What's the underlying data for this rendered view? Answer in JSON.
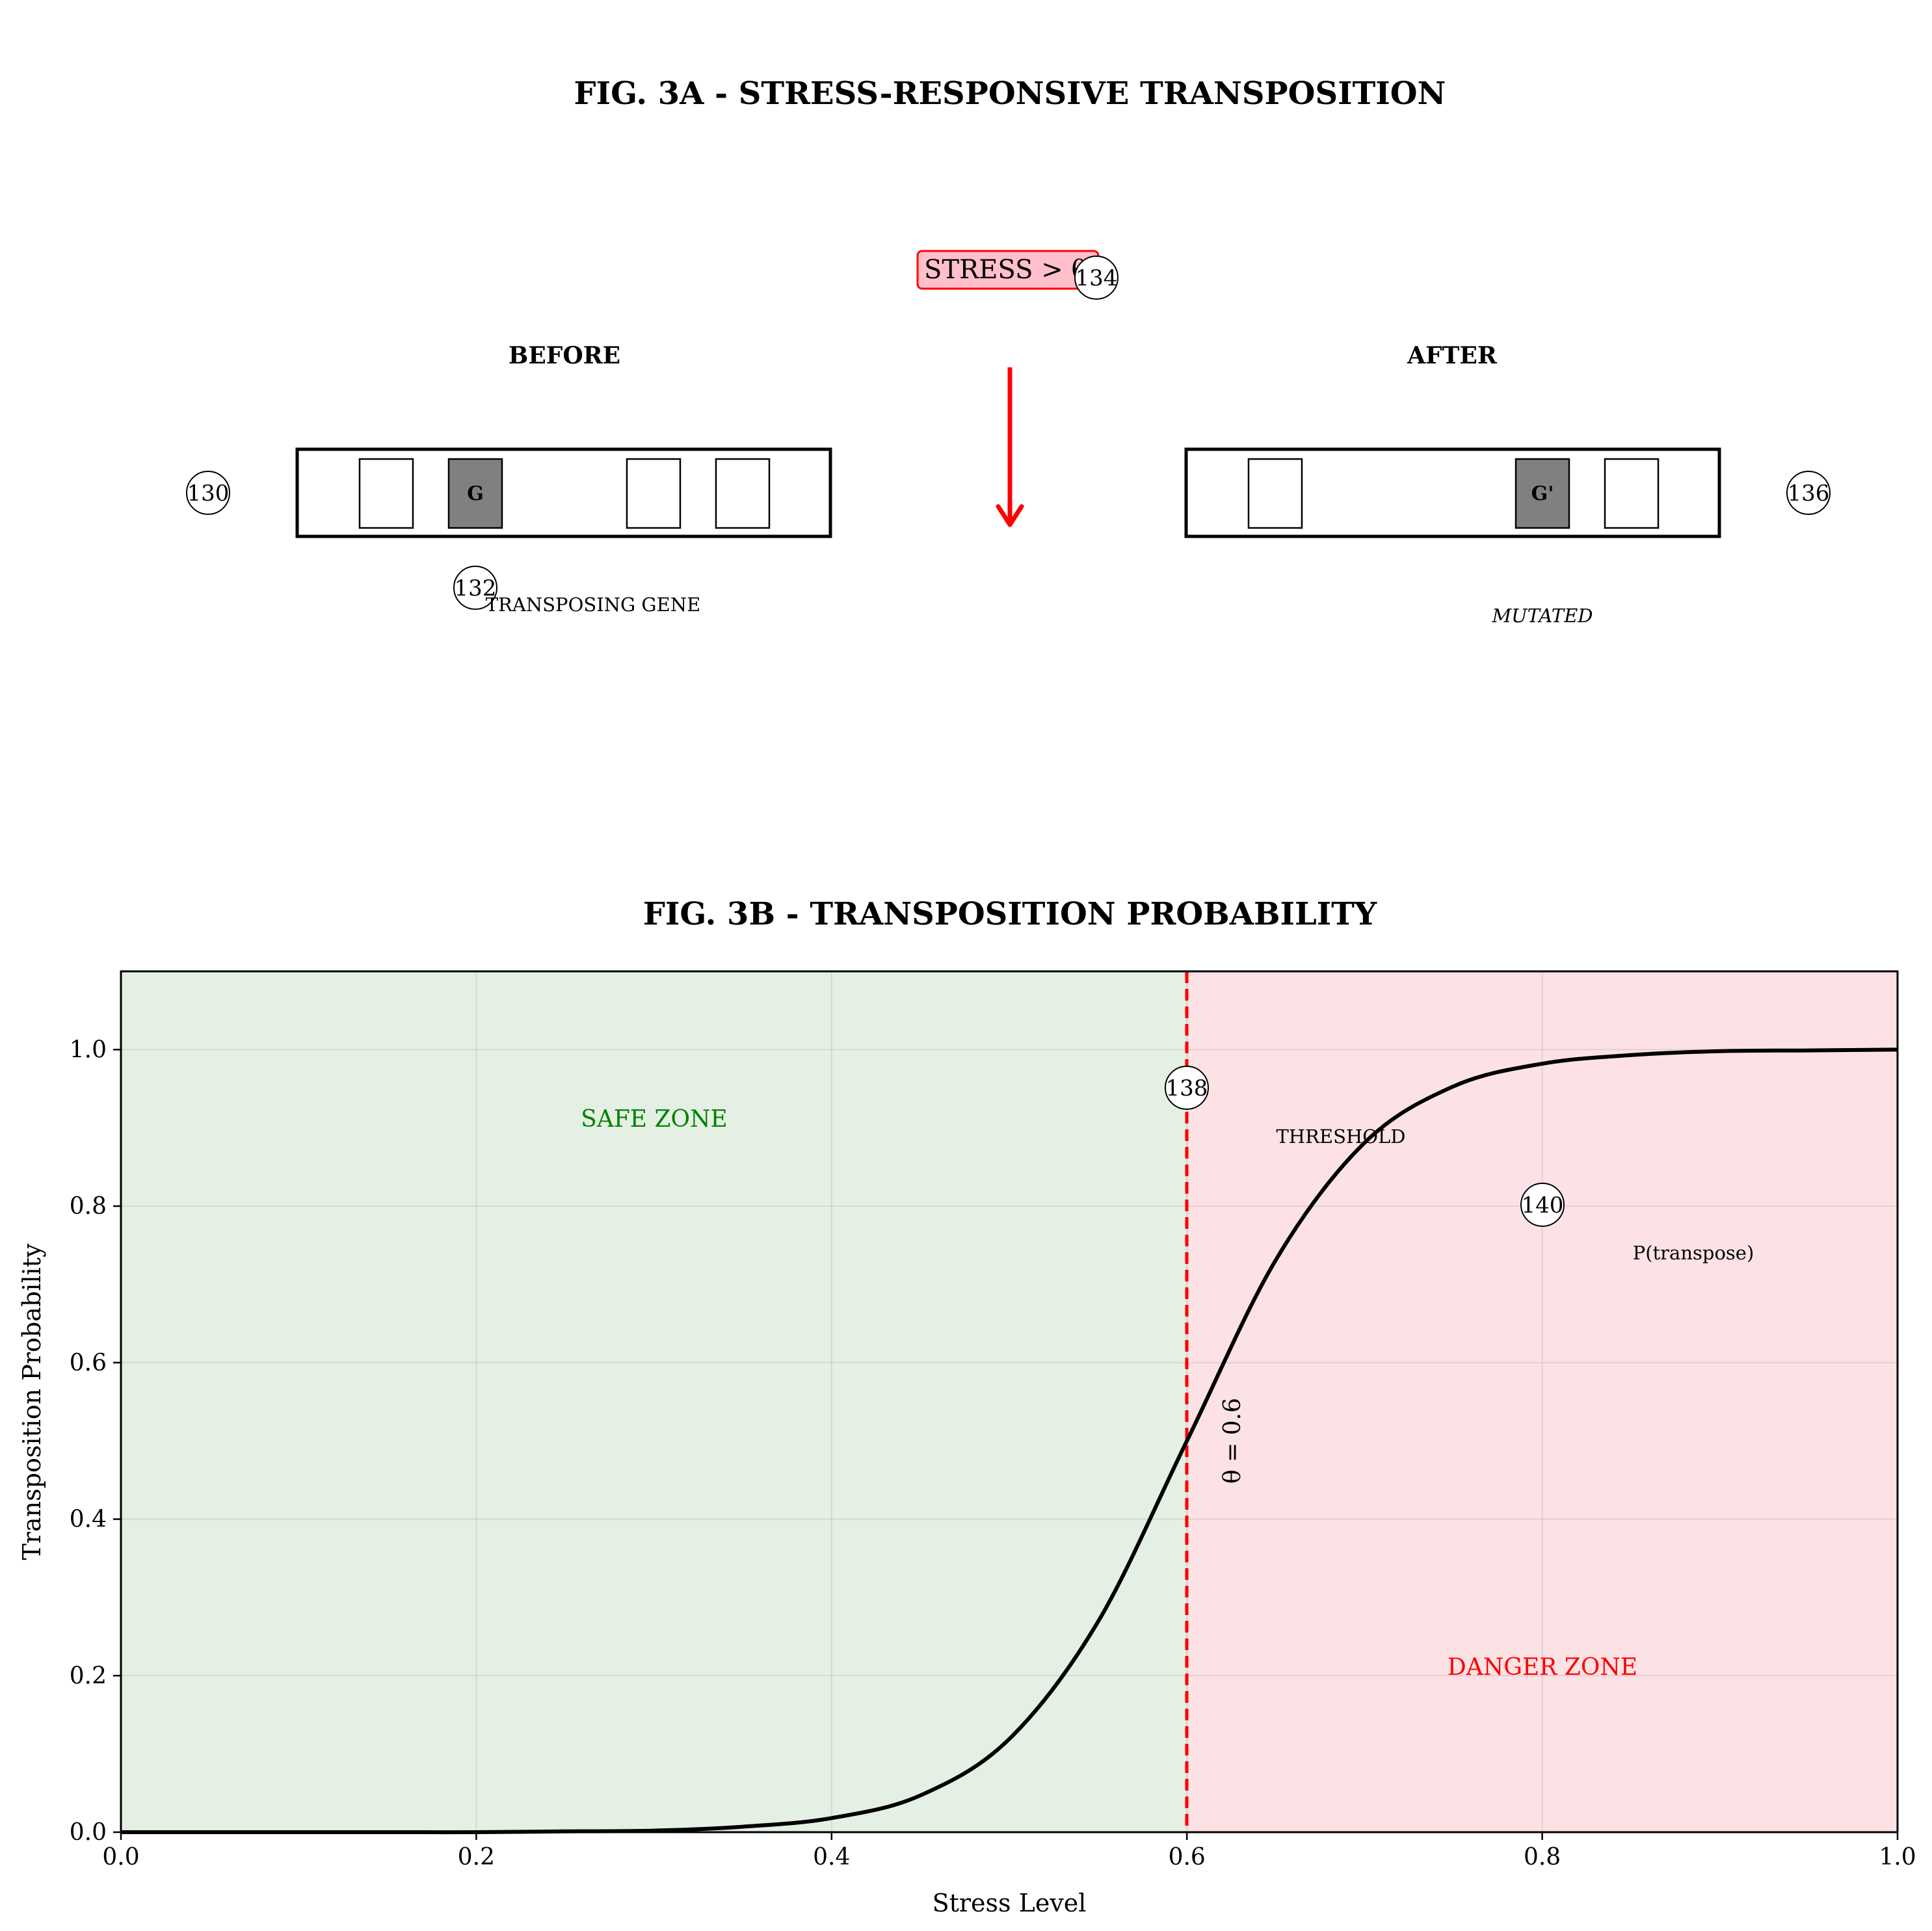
{
  "fig3a": {
    "title": "FIG. 3A - STRESS-RESPONSIVE TRANSPOSITION",
    "stress_label": "STRESS > θ",
    "before_label": "BEFORE",
    "after_label": "AFTER",
    "gene_before": "G",
    "gene_after": "G'",
    "transposing_label": "TRANSPOSING GENE",
    "mutated_label": "MUTATED",
    "refs": {
      "before_genome": "130",
      "transposing_gene": "132",
      "stress": "134",
      "after_genome": "136"
    }
  },
  "fig3b": {
    "title": "FIG. 3B - TRANSPOSITION PROBABILITY",
    "safe_label": "SAFE ZONE",
    "danger_label": "DANGER ZONE",
    "threshold_label": "THRESHOLD",
    "theta_label": "θ = 0.6",
    "curve_label": "P(transpose)",
    "refs": {
      "threshold": "138",
      "curve": "140"
    }
  },
  "chart_data": {
    "type": "line",
    "title": "FIG. 3B - TRANSPOSITION PROBABILITY",
    "xlabel": "Stress Level",
    "ylabel": "Transposition Probability",
    "xlim": [
      0,
      1
    ],
    "ylim": [
      0,
      1.1
    ],
    "xticks": [
      "0.0",
      "0.2",
      "0.4",
      "0.6",
      "0.8",
      "1.0"
    ],
    "yticks": [
      "0.0",
      "0.2",
      "0.4",
      "0.6",
      "0.8",
      "1.0"
    ],
    "grid": true,
    "threshold": 0.6,
    "x": [
      0.0,
      0.05,
      0.1,
      0.15,
      0.2,
      0.25,
      0.3,
      0.35,
      0.4,
      0.45,
      0.5,
      0.55,
      0.6,
      0.65,
      0.7,
      0.75,
      0.8,
      0.85,
      0.9,
      0.95,
      1.0
    ],
    "series": [
      {
        "values": [
          0.0,
          0.0,
          0.0,
          0.0,
          0.0,
          0.001,
          0.002,
          0.007,
          0.018,
          0.047,
          0.119,
          0.269,
          0.5,
          0.731,
          0.881,
          0.953,
          0.982,
          0.993,
          0.998,
          0.999,
          1.0
        ]
      }
    ],
    "colors": {
      "curve": "#000000",
      "threshold": "#ff0000",
      "safe_zone": "#e5f0e4",
      "danger_zone": "#fde2e5",
      "safe_text": "#008000",
      "danger_text": "#ff0000",
      "gene_fill": "#808080",
      "stress_box": "#ffc0cb",
      "arrow": "#ff0000"
    }
  }
}
